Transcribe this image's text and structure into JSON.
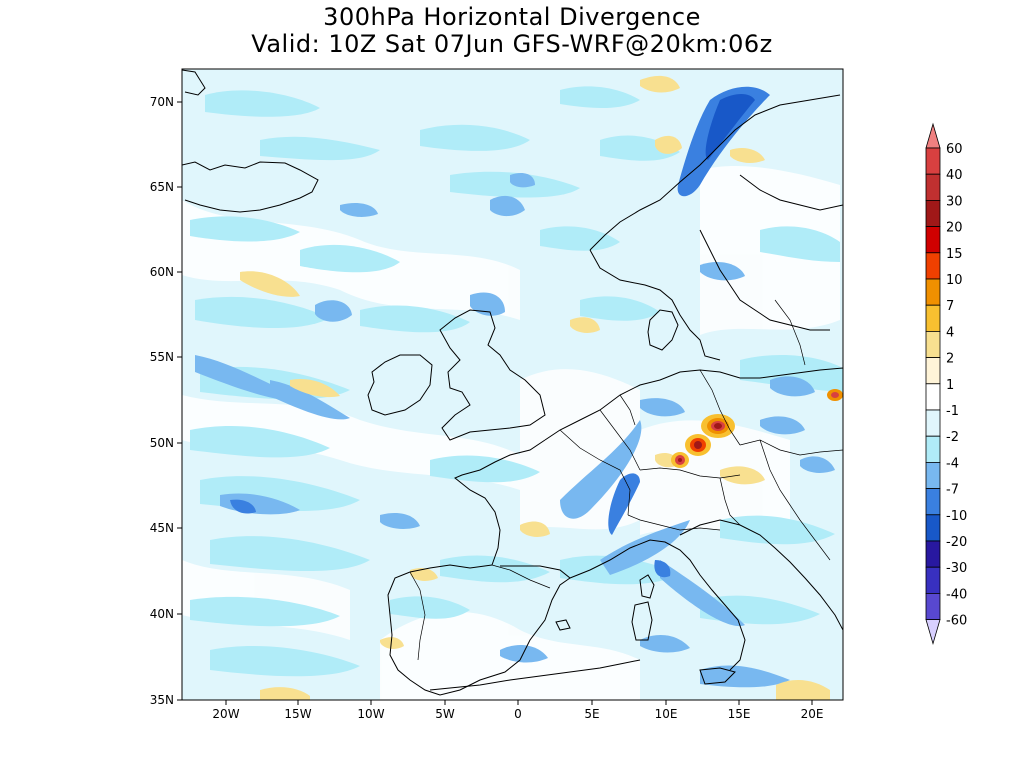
{
  "title": "300hPa Horizontal Divergence",
  "subtitle": "Valid: 10Z Sat 07Jun GFS-WRF@20km:06z",
  "map": {
    "lat_labels": [
      "70N",
      "65N",
      "60N",
      "55N",
      "50N",
      "45N",
      "40N",
      "35N"
    ],
    "lon_labels": [
      "20W",
      "15W",
      "10W",
      "5W",
      "0",
      "5E",
      "10E",
      "15E",
      "20E"
    ],
    "lat_range": [
      35,
      72
    ],
    "lon_range": [
      -23,
      22
    ]
  },
  "colorbar": {
    "labels": [
      "60",
      "40",
      "30",
      "20",
      "15",
      "10",
      "7",
      "4",
      "2",
      "1",
      "-1",
      "-2",
      "-4",
      "-7",
      "-10",
      "-20",
      "-30",
      "-40",
      "-60"
    ],
    "colors": [
      "#f08080",
      "#d84040",
      "#c03030",
      "#a01818",
      "#d00000",
      "#f04000",
      "#f09000",
      "#f8c030",
      "#f8e090",
      "#fff4d8",
      "#ffffff",
      "#e0f6fc",
      "#b0ecf8",
      "#78b8f0",
      "#3a80e0",
      "#1858c8",
      "#2818a0",
      "#3830c0",
      "#5848d0",
      "#8070e0",
      "#b0a0f8",
      "#d8d0ff"
    ]
  },
  "map_colors": {
    "ocean_bg": "#e0f6fc",
    "light_blue": "#b0ecf8",
    "mid_blue": "#78b8f0",
    "dark_blue": "#3a80e0",
    "deep_blue": "#1858c8",
    "pale_yellow": "#f8e090",
    "orange": "#f09000",
    "red": "#d84040",
    "dark_red": "#a01818",
    "coast": "#000000"
  }
}
